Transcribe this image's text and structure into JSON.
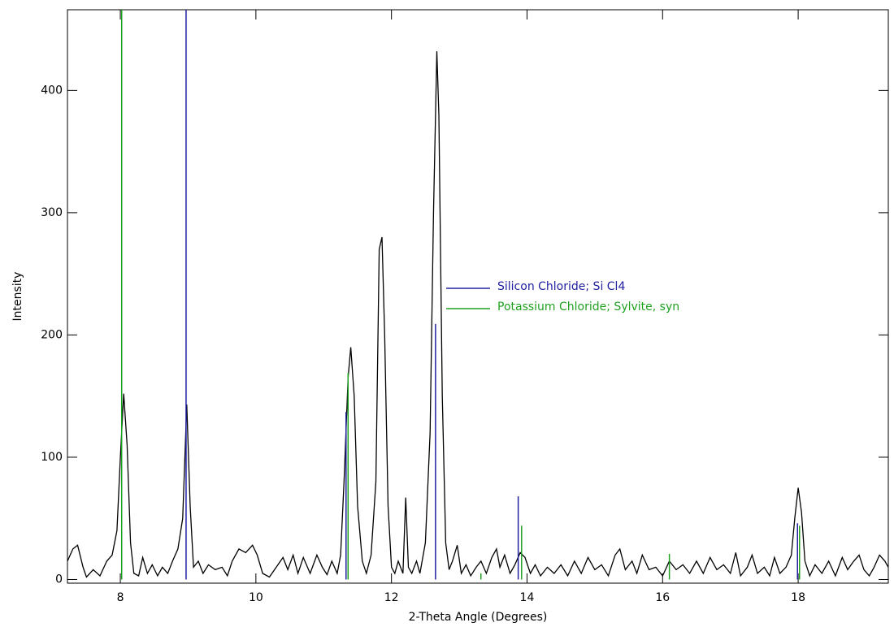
{
  "chart_data": {
    "type": "line",
    "x_label": "2-Theta Angle (Degrees)",
    "y_label": "Intensity",
    "xlim": [
      7.22,
      19.33
    ],
    "ylim": [
      -3,
      466
    ],
    "xticks": [
      8,
      10,
      12,
      14,
      16,
      18
    ],
    "yticks": [
      0,
      100,
      200,
      300,
      400
    ],
    "color": "#000000",
    "x": [
      7.22,
      7.3,
      7.37,
      7.45,
      7.5,
      7.6,
      7.7,
      7.8,
      7.88,
      7.95,
      8.0,
      8.05,
      8.1,
      8.15,
      8.2,
      8.27,
      8.33,
      8.4,
      8.47,
      8.55,
      8.62,
      8.7,
      8.77,
      8.85,
      8.92,
      8.98,
      9.03,
      9.08,
      9.15,
      9.22,
      9.3,
      9.4,
      9.5,
      9.58,
      9.65,
      9.75,
      9.85,
      9.95,
      10.02,
      10.1,
      10.2,
      10.3,
      10.4,
      10.47,
      10.55,
      10.62,
      10.7,
      10.8,
      10.9,
      10.98,
      11.05,
      11.12,
      11.2,
      11.25,
      11.3,
      11.36,
      11.4,
      11.45,
      11.5,
      11.57,
      11.63,
      11.7,
      11.77,
      11.82,
      11.86,
      11.9,
      11.95,
      12.0,
      12.05,
      12.1,
      12.17,
      12.21,
      12.25,
      12.3,
      12.37,
      12.42,
      12.5,
      12.57,
      12.62,
      12.67,
      12.7,
      12.75,
      12.8,
      12.85,
      12.9,
      12.97,
      13.03,
      13.1,
      13.17,
      13.25,
      13.32,
      13.4,
      13.48,
      13.55,
      13.6,
      13.67,
      13.75,
      13.82,
      13.9,
      13.97,
      14.05,
      14.12,
      14.2,
      14.3,
      14.4,
      14.5,
      14.6,
      14.7,
      14.8,
      14.9,
      15.0,
      15.1,
      15.2,
      15.3,
      15.37,
      15.45,
      15.55,
      15.62,
      15.7,
      15.8,
      15.9,
      16.0,
      16.1,
      16.2,
      16.3,
      16.4,
      16.5,
      16.6,
      16.7,
      16.8,
      16.9,
      17.0,
      17.08,
      17.15,
      17.25,
      17.32,
      17.4,
      17.5,
      17.58,
      17.65,
      17.73,
      17.82,
      17.9,
      17.95,
      18.0,
      18.05,
      18.1,
      18.17,
      18.25,
      18.35,
      18.45,
      18.55,
      18.65,
      18.73,
      18.82,
      18.9,
      18.97,
      19.05,
      19.12,
      19.2,
      19.28,
      19.33
    ],
    "values": [
      15,
      25,
      28,
      10,
      2,
      8,
      3,
      15,
      20,
      40,
      100,
      152,
      110,
      30,
      5,
      3,
      18,
      5,
      12,
      3,
      10,
      5,
      15,
      25,
      50,
      143,
      60,
      10,
      15,
      5,
      12,
      8,
      10,
      3,
      15,
      25,
      22,
      28,
      20,
      5,
      2,
      10,
      18,
      8,
      20,
      5,
      18,
      5,
      20,
      10,
      4,
      15,
      5,
      20,
      80,
      165,
      190,
      150,
      60,
      15,
      5,
      20,
      80,
      270,
      280,
      200,
      60,
      10,
      5,
      15,
      5,
      67,
      10,
      5,
      15,
      5,
      30,
      120,
      300,
      432,
      380,
      150,
      30,
      8,
      15,
      28,
      5,
      12,
      3,
      10,
      15,
      5,
      18,
      25,
      10,
      20,
      5,
      12,
      22,
      18,
      5,
      12,
      3,
      10,
      5,
      12,
      3,
      15,
      5,
      18,
      8,
      12,
      3,
      20,
      25,
      8,
      15,
      5,
      20,
      8,
      10,
      3,
      15,
      8,
      12,
      5,
      15,
      5,
      18,
      8,
      12,
      5,
      22,
      3,
      10,
      20,
      5,
      10,
      3,
      18,
      5,
      10,
      20,
      50,
      75,
      55,
      15,
      3,
      12,
      5,
      15,
      3,
      18,
      8,
      15,
      20,
      8,
      3,
      10,
      20,
      15,
      10
    ],
    "series": [
      {
        "name": "Silicon Chloride; Si Cl4",
        "color": "#2020a0",
        "x": [
          8.97,
          11.33,
          12.65,
          13.87,
          17.99
        ],
        "values": [
          466,
          137,
          209,
          68,
          46
        ]
      },
      {
        "name": "Potassium Chloride; Sylvite, syn",
        "color": "#20a020",
        "x": [
          8.02,
          11.36,
          13.32,
          13.92,
          16.1,
          18.02
        ],
        "values": [
          466,
          169,
          5,
          44,
          21,
          44
        ]
      }
    ]
  }
}
